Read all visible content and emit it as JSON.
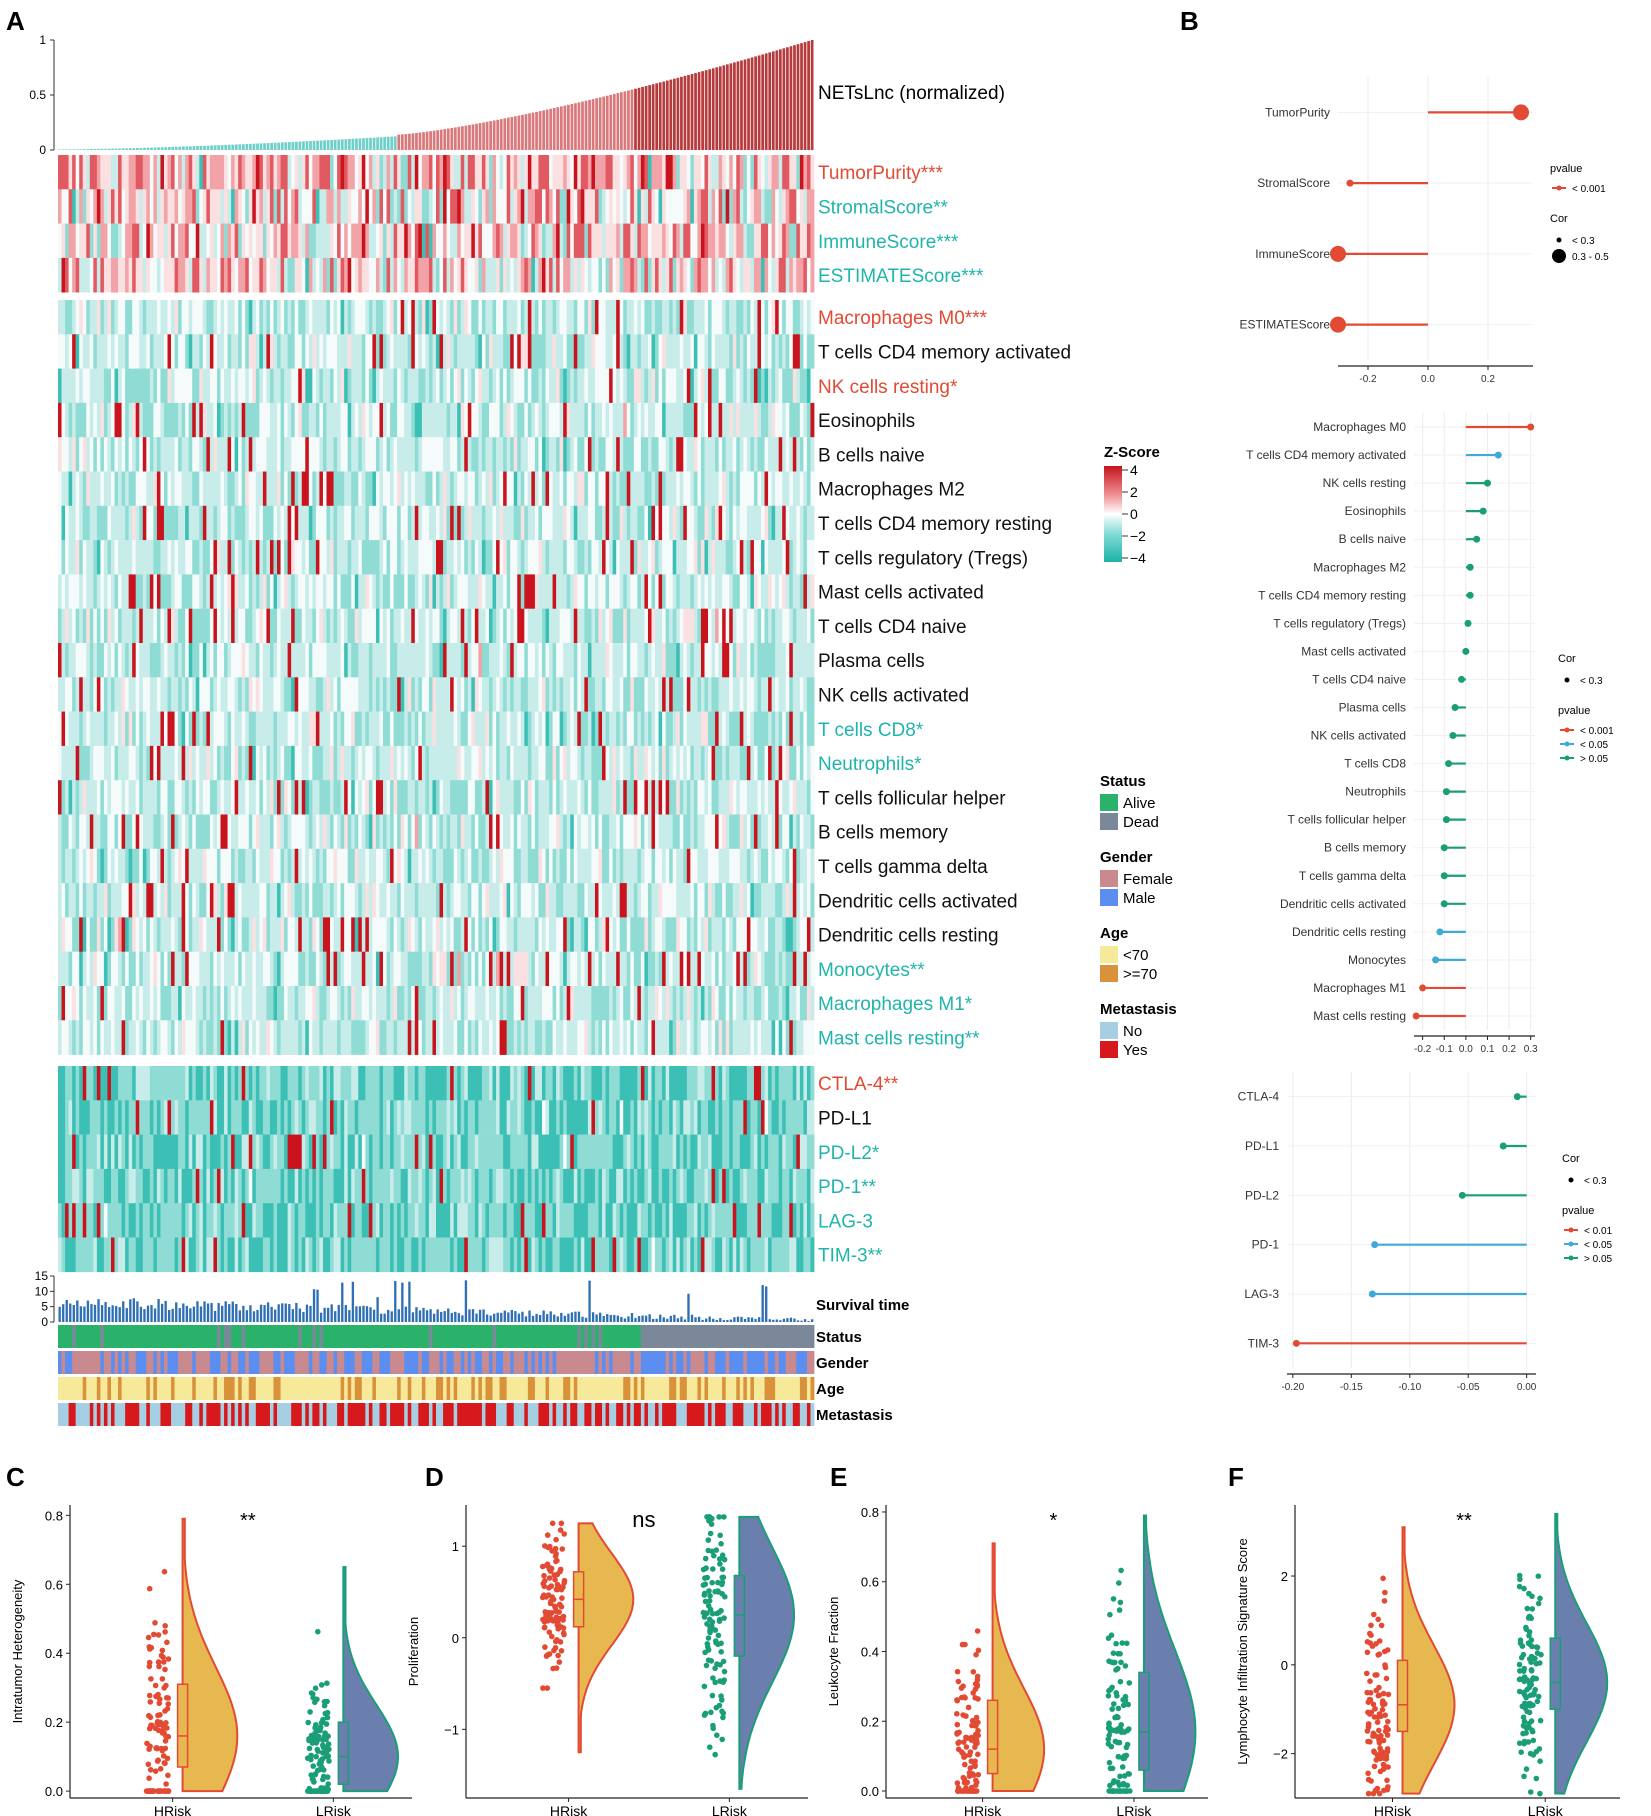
{
  "panels": {
    "A": "A",
    "B": "B",
    "C": "C",
    "D": "D",
    "E": "E",
    "F": "F"
  },
  "colors": {
    "red": "#e34a33",
    "teal": "#1fb5ac",
    "blue": "#3fa9d8",
    "green": "#1a9e77",
    "hr_violin": "#e7b84f",
    "lr_violin": "#6a7fae",
    "alive": "#2ab26b",
    "dead": "#7a8899",
    "female": "#c98a8f",
    "male": "#5b8ef0",
    "age_lt70": "#f7e99a",
    "age_ge70": "#d9913a",
    "meta_no": "#a6cfe3",
    "meta_yes": "#d7191c"
  },
  "panelA": {
    "top_bar": {
      "label": "NETsLnc (normalized)",
      "yticks": [
        "0",
        "0.5",
        "1"
      ]
    },
    "group1": [
      {
        "label": "TumorPurity***",
        "color": "red"
      },
      {
        "label": "StromalScore**",
        "color": "teal"
      },
      {
        "label": "ImmuneScore***",
        "color": "teal"
      },
      {
        "label": "ESTIMATEScore***",
        "color": "teal"
      }
    ],
    "group2": [
      {
        "label": "Macrophages M0***",
        "color": "red"
      },
      {
        "label": "T cells CD4 memory activated",
        "color": "black"
      },
      {
        "label": "NK cells resting*",
        "color": "red"
      },
      {
        "label": "Eosinophils",
        "color": "black"
      },
      {
        "label": "B cells naive",
        "color": "black"
      },
      {
        "label": "Macrophages M2",
        "color": "black"
      },
      {
        "label": "T cells CD4 memory resting",
        "color": "black"
      },
      {
        "label": "T cells regulatory (Tregs)",
        "color": "black"
      },
      {
        "label": "Mast cells activated",
        "color": "black"
      },
      {
        "label": "T cells CD4 naive",
        "color": "black"
      },
      {
        "label": "Plasma cells",
        "color": "black"
      },
      {
        "label": "NK cells activated",
        "color": "black"
      },
      {
        "label": "T cells CD8*",
        "color": "teal"
      },
      {
        "label": "Neutrophils*",
        "color": "teal"
      },
      {
        "label": "T cells follicular helper",
        "color": "black"
      },
      {
        "label": "B cells memory",
        "color": "black"
      },
      {
        "label": "T cells gamma delta",
        "color": "black"
      },
      {
        "label": "Dendritic cells activated",
        "color": "black"
      },
      {
        "label": "Dendritic cells resting",
        "color": "black"
      },
      {
        "label": "Monocytes**",
        "color": "teal"
      },
      {
        "label": "Macrophages M1*",
        "color": "teal"
      },
      {
        "label": "Mast cells resting**",
        "color": "teal"
      }
    ],
    "group3": [
      {
        "label": "CTLA-4**",
        "color": "red"
      },
      {
        "label": "PD-L1",
        "color": "black"
      },
      {
        "label": "PD-L2*",
        "color": "teal"
      },
      {
        "label": "PD-1**",
        "color": "teal"
      },
      {
        "label": "LAG-3",
        "color": "teal"
      },
      {
        "label": "TIM-3**",
        "color": "teal"
      }
    ],
    "survival": {
      "label": "Survival time",
      "yticks": [
        "0",
        "5",
        "10",
        "15"
      ]
    },
    "annotations": [
      "Status",
      "Gender",
      "Age",
      "Metastasis"
    ],
    "zscore_legend": {
      "title": "Z-Score",
      "ticks": [
        "4",
        "2",
        "0",
        "−2",
        "−4"
      ]
    },
    "legends": [
      {
        "title": "Status",
        "items": [
          {
            "label": "Alive",
            "color": "alive"
          },
          {
            "label": "Dead",
            "color": "dead"
          }
        ]
      },
      {
        "title": "Gender",
        "items": [
          {
            "label": "Female",
            "color": "female"
          },
          {
            "label": "Male",
            "color": "male"
          }
        ]
      },
      {
        "title": "Age",
        "items": [
          {
            "label": "<70",
            "color": "age_lt70"
          },
          {
            "label": ">=70",
            "color": "age_ge70"
          }
        ]
      },
      {
        "title": "Metastasis",
        "items": [
          {
            "label": "No",
            "color": "meta_no"
          },
          {
            "label": "Yes",
            "color": "meta_yes"
          }
        ]
      }
    ]
  },
  "panelB": {
    "sub1": {
      "xlim": [
        -0.3,
        0.35
      ],
      "xticks": [
        -0.2,
        0.0,
        0.2
      ],
      "xtick_labels": [
        "-0.2",
        "0.0",
        "0.2"
      ],
      "items": [
        {
          "label": "TumorPurity",
          "value": 0.31,
          "pcolor": "red",
          "big": true
        },
        {
          "label": "StromalScore",
          "value": -0.26,
          "pcolor": "red",
          "big": false
        },
        {
          "label": "ImmuneScore",
          "value": -0.3,
          "pcolor": "red",
          "big": true
        },
        {
          "label": "ESTIMATEScore",
          "value": -0.3,
          "pcolor": "red",
          "big": true
        }
      ],
      "legend": {
        "pvalue_title": "pvalue",
        "pvalue_items": [
          {
            "label": "< 0.001",
            "color": "red"
          }
        ],
        "cor_title": "Cor",
        "cor_items": [
          "< 0.3",
          "0.3 - 0.5"
        ]
      }
    },
    "sub2": {
      "xlim": [
        -0.24,
        0.32
      ],
      "xticks": [
        -0.2,
        -0.1,
        0.0,
        0.1,
        0.2,
        0.3
      ],
      "xtick_labels": [
        "-0.2",
        "-0.1",
        "0.0",
        "0.1",
        "0.2",
        "0.3"
      ],
      "items": [
        {
          "label": "Macrophages M0",
          "value": 0.3,
          "pcolor": "red"
        },
        {
          "label": "T cells CD4 memory activated",
          "value": 0.15,
          "pcolor": "blue"
        },
        {
          "label": "NK cells resting",
          "value": 0.1,
          "pcolor": "green"
        },
        {
          "label": "Eosinophils",
          "value": 0.08,
          "pcolor": "green"
        },
        {
          "label": "B cells naive",
          "value": 0.05,
          "pcolor": "green"
        },
        {
          "label": "Macrophages M2",
          "value": 0.02,
          "pcolor": "green"
        },
        {
          "label": "T cells CD4 memory resting",
          "value": 0.02,
          "pcolor": "green"
        },
        {
          "label": "T cells regulatory (Tregs)",
          "value": 0.01,
          "pcolor": "green"
        },
        {
          "label": "Mast cells activated",
          "value": 0.0,
          "pcolor": "green"
        },
        {
          "label": "T cells CD4 naive",
          "value": -0.02,
          "pcolor": "green"
        },
        {
          "label": "Plasma cells",
          "value": -0.05,
          "pcolor": "green"
        },
        {
          "label": "NK cells activated",
          "value": -0.06,
          "pcolor": "green"
        },
        {
          "label": "T cells CD8",
          "value": -0.08,
          "pcolor": "green"
        },
        {
          "label": "Neutrophils",
          "value": -0.09,
          "pcolor": "green"
        },
        {
          "label": "T cells follicular helper",
          "value": -0.09,
          "pcolor": "green"
        },
        {
          "label": "B cells memory",
          "value": -0.1,
          "pcolor": "green"
        },
        {
          "label": "T cells gamma delta",
          "value": -0.1,
          "pcolor": "green"
        },
        {
          "label": "Dendritic cells activated",
          "value": -0.1,
          "pcolor": "green"
        },
        {
          "label": "Dendritic cells resting",
          "value": -0.12,
          "pcolor": "blue"
        },
        {
          "label": "Monocytes",
          "value": -0.14,
          "pcolor": "blue"
        },
        {
          "label": "Macrophages M1",
          "value": -0.2,
          "pcolor": "red"
        },
        {
          "label": "Mast cells resting",
          "value": -0.23,
          "pcolor": "red"
        }
      ],
      "legend": {
        "cor_title": "Cor",
        "cor_items": [
          "< 0.3"
        ],
        "pvalue_title": "pvalue",
        "pvalue_items": [
          {
            "label": "< 0.001",
            "color": "red"
          },
          {
            "label": "< 0.05",
            "color": "blue"
          },
          {
            "label": "> 0.05",
            "color": "green"
          }
        ]
      }
    },
    "sub3": {
      "xlim": [
        -0.205,
        0.008
      ],
      "xticks": [
        -0.2,
        -0.15,
        -0.1,
        -0.05,
        0.0
      ],
      "xtick_labels": [
        "-0.20",
        "-0.15",
        "-0.10",
        "-0.05",
        "0.00"
      ],
      "items": [
        {
          "label": "CTLA-4",
          "value": -0.008,
          "pcolor": "green"
        },
        {
          "label": "PD-L1",
          "value": -0.02,
          "pcolor": "green"
        },
        {
          "label": "PD-L2",
          "value": -0.055,
          "pcolor": "green"
        },
        {
          "label": "PD-1",
          "value": -0.13,
          "pcolor": "blue"
        },
        {
          "label": "LAG-3",
          "value": -0.132,
          "pcolor": "blue"
        },
        {
          "label": "TIM-3",
          "value": -0.197,
          "pcolor": "red"
        }
      ],
      "legend": {
        "cor_title": "Cor",
        "cor_items": [
          "< 0.3"
        ],
        "pvalue_title": "pvalue",
        "pvalue_items": [
          {
            "label": "< 0.01",
            "color": "red"
          },
          {
            "label": "< 0.05",
            "color": "blue"
          },
          {
            "label": "> 0.05",
            "color": "green"
          }
        ]
      }
    }
  },
  "chart_data": [
    {
      "panel": "C",
      "type": "violin",
      "ylabel": "Intratumor Heterogeneity",
      "categories": [
        "HRisk",
        "LRisk"
      ],
      "ylim": [
        -0.02,
        0.83
      ],
      "yticks": [
        0.0,
        0.2,
        0.4,
        0.6,
        0.8
      ],
      "ytick_labels": [
        "0.0",
        "0.2",
        "0.4",
        "0.6",
        "0.8"
      ],
      "significance": "**",
      "groups": [
        {
          "min": 0.0,
          "q1": 0.07,
          "median": 0.16,
          "q3": 0.31,
          "max": 0.79
        },
        {
          "min": 0.0,
          "q1": 0.02,
          "median": 0.1,
          "q3": 0.2,
          "max": 0.65
        }
      ]
    },
    {
      "panel": "D",
      "type": "violin",
      "ylabel": "Proliferation",
      "categories": [
        "HRisk",
        "LRisk"
      ],
      "ylim": [
        -1.75,
        1.45
      ],
      "yticks": [
        -1,
        0,
        1
      ],
      "ytick_labels": [
        "−1",
        "0",
        "1"
      ],
      "significance": "ns",
      "groups": [
        {
          "min": -1.25,
          "q1": 0.12,
          "median": 0.42,
          "q3": 0.72,
          "max": 1.25
        },
        {
          "min": -1.65,
          "q1": -0.2,
          "median": 0.25,
          "q3": 0.68,
          "max": 1.32
        }
      ]
    },
    {
      "panel": "E",
      "type": "violin",
      "ylabel": "Leukocyte Fraction",
      "categories": [
        "HRisk",
        "LRisk"
      ],
      "ylim": [
        -0.02,
        0.82
      ],
      "yticks": [
        0.0,
        0.2,
        0.4,
        0.6,
        0.8
      ],
      "ytick_labels": [
        "0.0",
        "0.2",
        "0.4",
        "0.6",
        "0.8"
      ],
      "significance": "*",
      "groups": [
        {
          "min": 0.0,
          "q1": 0.05,
          "median": 0.12,
          "q3": 0.26,
          "max": 0.71
        },
        {
          "min": 0.0,
          "q1": 0.06,
          "median": 0.17,
          "q3": 0.34,
          "max": 0.79
        }
      ]
    },
    {
      "panel": "F",
      "type": "violin",
      "ylabel": "Lymphocyte Infiltration Signature Score",
      "categories": [
        "HRisk",
        "LRisk"
      ],
      "ylim": [
        -3.0,
        3.6
      ],
      "yticks": [
        -2,
        0,
        2
      ],
      "ytick_labels": [
        "−2",
        "0",
        "2"
      ],
      "significance": "**",
      "groups": [
        {
          "min": -2.9,
          "q1": -1.5,
          "median": -0.9,
          "q3": 0.1,
          "max": 3.1
        },
        {
          "min": -2.9,
          "q1": -1.0,
          "median": -0.4,
          "q3": 0.6,
          "max": 3.4
        }
      ]
    }
  ]
}
